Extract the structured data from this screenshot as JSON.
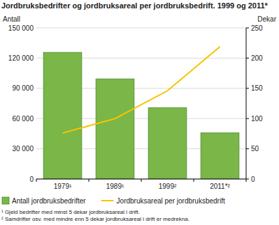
{
  "chart_data": {
    "type": "bar",
    "title": "Jordbruksbedrifter og jordbruksareal per jordbruksbedrift. 1999 og 2011*",
    "y_label": "Antall",
    "y2_label": "Dekar",
    "categories": [
      "1979¹",
      "1989¹",
      "1999²",
      "2011*²"
    ],
    "series": [
      {
        "name": "Antall jordbruksbedrifter",
        "type": "bar",
        "color": "#7ab648",
        "values": [
          125700,
          99400,
          70700,
          45800
        ]
      },
      {
        "name": "Jordbruksareal per jordbruksbedrift",
        "type": "line",
        "color": "#f5c400",
        "axis": "y2",
        "values": [
          76,
          100,
          146,
          219
        ]
      }
    ],
    "ylim": [
      0,
      150000
    ],
    "yticks": [
      0,
      {
        "value": 30000,
        "label": "30 000"
      },
      {
        "value": 60000,
        "label": "60 000"
      },
      {
        "value": 90000,
        "label": "90 000"
      },
      {
        "value": 120000,
        "label": "120 000"
      },
      {
        "value": 150000,
        "label": "150 000"
      }
    ],
    "y2lim": [
      0,
      250
    ],
    "y2ticks": [
      0,
      50,
      100,
      150,
      200,
      250
    ],
    "grid": true,
    "legend": "bottom",
    "footnotes": [
      "¹ Gjeld bedrifter med minst 5 dekar jordbruksareal i drift.",
      "² Samdrifter osv. med mindre enn 5 dekar jordbruksareal i drift er medrekna."
    ]
  }
}
